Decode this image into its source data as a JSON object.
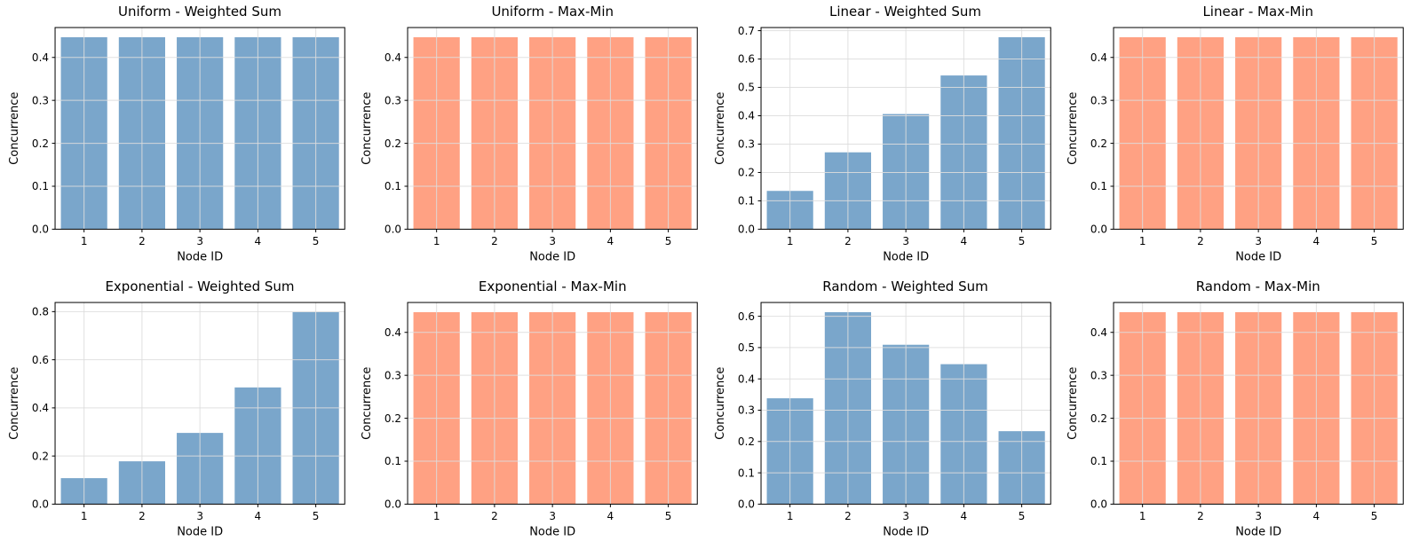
{
  "colors": {
    "weighted_sum_bar": "#7aa6cb",
    "max_min_bar": "#ffa183",
    "grid": "#dddddd",
    "spine": "#000000",
    "text": "#000000",
    "background": "#ffffff"
  },
  "chart_data": [
    {
      "type": "bar",
      "title": "Uniform - Weighted Sum",
      "xlabel": "Node ID",
      "ylabel": "Concurrence",
      "categories": [
        "1",
        "2",
        "3",
        "4",
        "5"
      ],
      "values": [
        0.447,
        0.447,
        0.447,
        0.447,
        0.447
      ],
      "yticks": [
        0.0,
        0.1,
        0.2,
        0.3,
        0.4
      ],
      "ytick_format": "0.1f",
      "ylim": [
        0,
        0.4696
      ],
      "series": "weighted_sum_bar",
      "grid": true,
      "legend": "none"
    },
    {
      "type": "bar",
      "title": "Uniform - Max-Min",
      "xlabel": "Node ID",
      "ylabel": "Concurrence",
      "categories": [
        "1",
        "2",
        "3",
        "4",
        "5"
      ],
      "values": [
        0.447,
        0.447,
        0.447,
        0.447,
        0.447
      ],
      "yticks": [
        0.0,
        0.1,
        0.2,
        0.3,
        0.4
      ],
      "ytick_format": "0.1f",
      "ylim": [
        0,
        0.4696
      ],
      "series": "max_min_bar",
      "grid": true,
      "legend": "none"
    },
    {
      "type": "bar",
      "title": "Linear - Weighted Sum",
      "xlabel": "Node ID",
      "ylabel": "Concurrence",
      "categories": [
        "1",
        "2",
        "3",
        "4",
        "5"
      ],
      "values": [
        0.135,
        0.271,
        0.406,
        0.542,
        0.677
      ],
      "yticks": [
        0.0,
        0.1,
        0.2,
        0.3,
        0.4,
        0.5,
        0.6,
        0.7
      ],
      "ytick_format": "0.1f",
      "ylim": [
        0,
        0.711
      ],
      "series": "weighted_sum_bar",
      "grid": true,
      "legend": "none"
    },
    {
      "type": "bar",
      "title": "Linear - Max-Min",
      "xlabel": "Node ID",
      "ylabel": "Concurrence",
      "categories": [
        "1",
        "2",
        "3",
        "4",
        "5"
      ],
      "values": [
        0.447,
        0.447,
        0.447,
        0.447,
        0.447
      ],
      "yticks": [
        0.0,
        0.1,
        0.2,
        0.3,
        0.4
      ],
      "ytick_format": "0.1f",
      "ylim": [
        0,
        0.4696
      ],
      "series": "max_min_bar",
      "grid": true,
      "legend": "none"
    },
    {
      "type": "bar",
      "title": "Exponential - Weighted Sum",
      "xlabel": "Node ID",
      "ylabel": "Concurrence",
      "categories": [
        "1",
        "2",
        "3",
        "4",
        "5"
      ],
      "values": [
        0.108,
        0.178,
        0.296,
        0.485,
        0.798
      ],
      "yticks": [
        0.0,
        0.2,
        0.4,
        0.6,
        0.8
      ],
      "ytick_format": "0.1f",
      "ylim": [
        0,
        0.838
      ],
      "series": "weighted_sum_bar",
      "grid": true,
      "legend": "none"
    },
    {
      "type": "bar",
      "title": "Exponential - Max-Min",
      "xlabel": "Node ID",
      "ylabel": "Concurrence",
      "categories": [
        "1",
        "2",
        "3",
        "4",
        "5"
      ],
      "values": [
        0.447,
        0.447,
        0.447,
        0.447,
        0.447
      ],
      "yticks": [
        0.0,
        0.1,
        0.2,
        0.3,
        0.4
      ],
      "ytick_format": "0.1f",
      "ylim": [
        0,
        0.4696
      ],
      "series": "max_min_bar",
      "grid": true,
      "legend": "none"
    },
    {
      "type": "bar",
      "title": "Random - Weighted Sum",
      "xlabel": "Node ID",
      "ylabel": "Concurrence",
      "categories": [
        "1",
        "2",
        "3",
        "4",
        "5"
      ],
      "values": [
        0.338,
        0.613,
        0.509,
        0.447,
        0.233
      ],
      "yticks": [
        0.0,
        0.1,
        0.2,
        0.3,
        0.4,
        0.5,
        0.6
      ],
      "ytick_format": "0.1f",
      "ylim": [
        0,
        0.644
      ],
      "series": "weighted_sum_bar",
      "grid": true,
      "legend": "none"
    },
    {
      "type": "bar",
      "title": "Random - Max-Min",
      "xlabel": "Node ID",
      "ylabel": "Concurrence",
      "categories": [
        "1",
        "2",
        "3",
        "4",
        "5"
      ],
      "values": [
        0.447,
        0.447,
        0.447,
        0.447,
        0.447
      ],
      "yticks": [
        0.0,
        0.1,
        0.2,
        0.3,
        0.4
      ],
      "ytick_format": "0.1f",
      "ylim": [
        0,
        0.4696
      ],
      "series": "max_min_bar",
      "grid": true,
      "legend": "none"
    }
  ]
}
